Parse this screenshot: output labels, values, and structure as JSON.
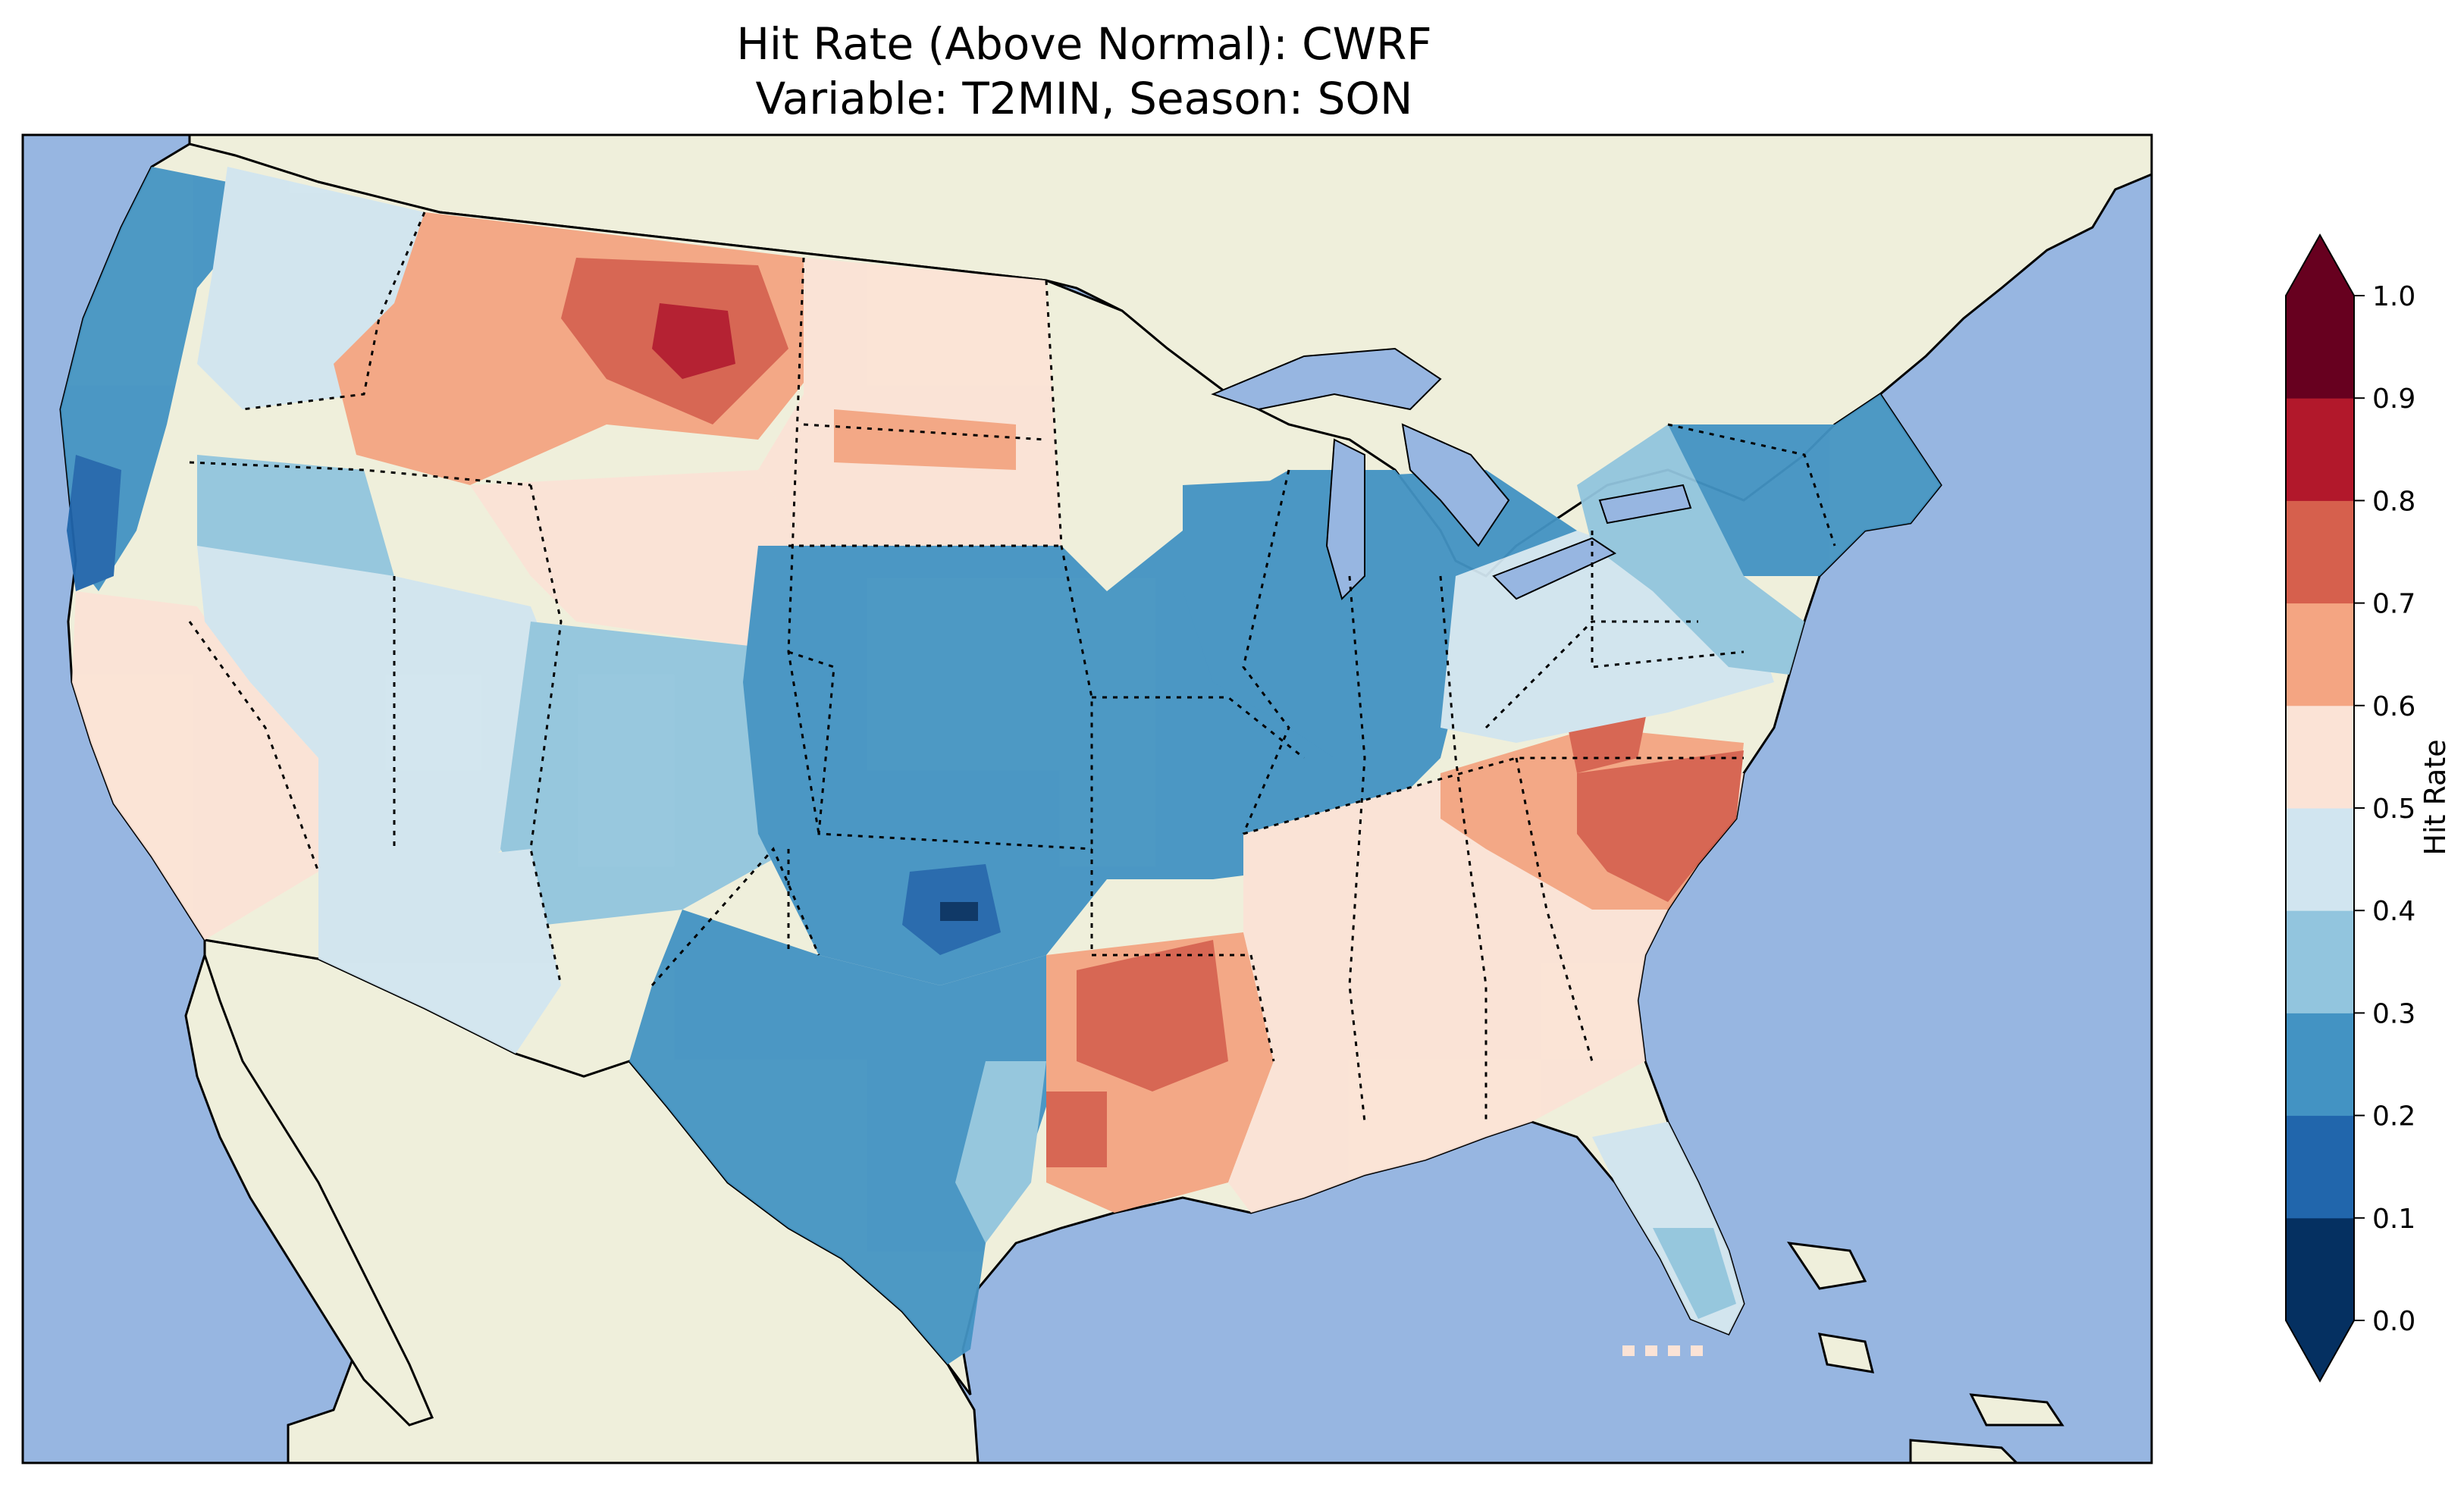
{
  "figure": {
    "title_line1": "Hit Rate (Above Normal): CWRF",
    "title_line2": "Variable: T2MIN, Season: SON"
  },
  "colorbar": {
    "label": "Hit Rate",
    "ticks": [
      "0.0",
      "0.1",
      "0.2",
      "0.3",
      "0.4",
      "0.5",
      "0.6",
      "0.7",
      "0.8",
      "0.9",
      "1.0"
    ],
    "levels": [
      0.0,
      0.1,
      0.2,
      0.3,
      0.4,
      0.5,
      0.6,
      0.7,
      0.8,
      0.9,
      1.0
    ],
    "colors": [
      "#053061",
      "#2166ac",
      "#4393c3",
      "#92c5de",
      "#d1e5f0",
      "#fbe3d6",
      "#f4a582",
      "#d6604d",
      "#b2182b",
      "#67001f"
    ],
    "extend_under": "#053061",
    "extend_over": "#67001f"
  },
  "map": {
    "ocean": "#97b6e1",
    "land": "#efefdb",
    "lakes": "#97b6e1"
  }
}
